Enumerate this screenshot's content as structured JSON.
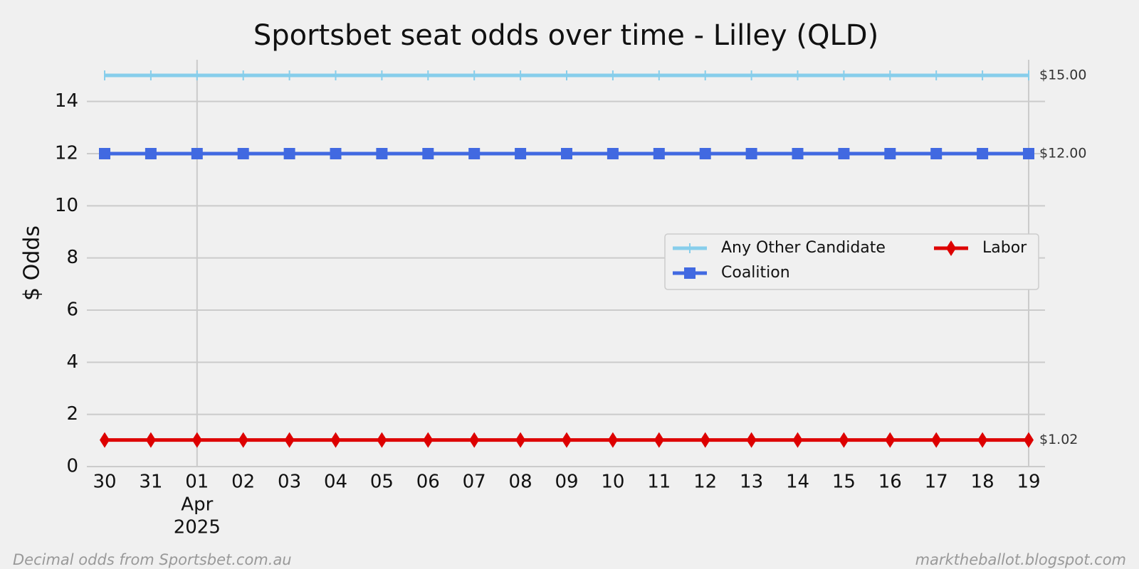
{
  "chart_data": {
    "type": "line",
    "title": "Sportsbet seat odds over time - Lilley (QLD)",
    "y_label": "$ Odds",
    "categories": [
      "30",
      "31",
      "01",
      "02",
      "03",
      "04",
      "05",
      "06",
      "07",
      "08",
      "09",
      "10",
      "11",
      "12",
      "13",
      "14",
      "15",
      "16",
      "17",
      "18",
      "19"
    ],
    "month_label": [
      "Apr",
      "2025"
    ],
    "series": [
      {
        "name": "Any Other Candidate",
        "color": "#87ceeb",
        "marker": "tick",
        "end_label": "$15.00",
        "values": [
          15,
          15,
          15,
          15,
          15,
          15,
          15,
          15,
          15,
          15,
          15,
          15,
          15,
          15,
          15,
          15,
          15,
          15,
          15,
          15,
          15
        ]
      },
      {
        "name": "Coalition",
        "color": "#4169e1",
        "marker": "square",
        "end_label": "$12.00",
        "values": [
          12,
          12,
          12,
          12,
          12,
          12,
          12,
          12,
          12,
          12,
          12,
          12,
          12,
          12,
          12,
          12,
          12,
          12,
          12,
          12,
          12
        ]
      },
      {
        "name": "Labor",
        "color": "#dd0000",
        "marker": "diamond",
        "end_label": "$1.02",
        "values": [
          1.02,
          1.02,
          1.02,
          1.02,
          1.02,
          1.02,
          1.02,
          1.02,
          1.02,
          1.02,
          1.02,
          1.02,
          1.02,
          1.02,
          1.02,
          1.02,
          1.02,
          1.02,
          1.02,
          1.02,
          1.02
        ]
      }
    ],
    "ylim": [
      0,
      15.6
    ],
    "yticks": [
      0,
      2,
      4,
      6,
      8,
      10,
      12,
      14
    ],
    "grid": true,
    "legend": "right",
    "footer_left": "Decimal odds from Sportsbet.com.au",
    "footer_right": "marktheballot.blogspot.com"
  }
}
